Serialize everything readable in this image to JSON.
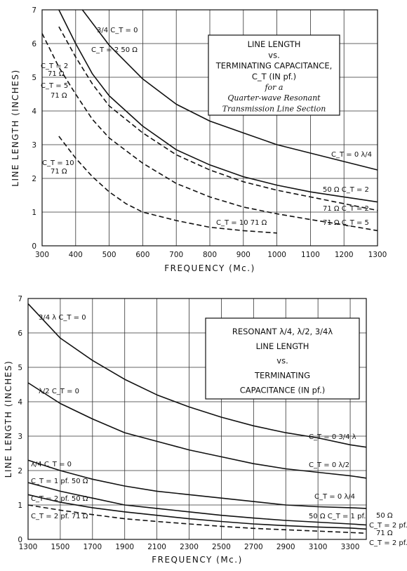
{
  "chart_data": [
    {
      "type": "line",
      "xlabel": "FREQUENCY (Mc.)",
      "ylabel": "LINE LENGTH (INCHES)",
      "xlim": [
        300,
        1300
      ],
      "ylim": [
        0,
        7
      ],
      "x_ticks": [
        "300",
        "400",
        "500",
        "600",
        "700",
        "800",
        "900",
        "1000",
        "1100",
        "1200",
        "1300"
      ],
      "y_ticks": [
        "0",
        "1",
        "2",
        "3",
        "4",
        "5",
        "6",
        "7"
      ],
      "grid": true,
      "title_lines": [
        "LINE LENGTH",
        "vs.",
        "TERMINATING CAPACITANCE,",
        "C_T (IN pf.)",
        "for a",
        "Quarter-wave Resonant",
        "Transmission Line Section"
      ],
      "series": [
        {
          "label": "C_T = 0  3/4",
          "dashed": false,
          "points": [
            [
              420,
              7.0
            ],
            [
              500,
              5.95
            ],
            [
              600,
              4.95
            ],
            [
              700,
              4.2
            ],
            [
              800,
              3.7
            ],
            [
              900,
              3.35
            ],
            [
              1000,
              3.0
            ],
            [
              1100,
              2.75
            ],
            [
              1200,
              2.5
            ],
            [
              1300,
              2.25
            ]
          ]
        },
        {
          "label": "C_T = 2  50 Ω",
          "dashed": false,
          "points": [
            [
              350,
              7.0
            ],
            [
              400,
              6.0
            ],
            [
              450,
              5.1
            ],
            [
              500,
              4.45
            ],
            [
              600,
              3.55
            ],
            [
              700,
              2.85
            ],
            [
              800,
              2.4
            ],
            [
              900,
              2.05
            ],
            [
              1000,
              1.8
            ],
            [
              1100,
              1.6
            ],
            [
              1200,
              1.45
            ],
            [
              1300,
              1.3
            ]
          ]
        },
        {
          "label": "C_T = 2  71 Ω",
          "dashed": true,
          "points": [
            [
              350,
              6.5
            ],
            [
              400,
              5.6
            ],
            [
              450,
              4.8
            ],
            [
              500,
              4.15
            ],
            [
              600,
              3.35
            ],
            [
              700,
              2.7
            ],
            [
              800,
              2.25
            ],
            [
              900,
              1.9
            ],
            [
              1000,
              1.65
            ],
            [
              1100,
              1.45
            ],
            [
              1200,
              1.25
            ],
            [
              1300,
              1.05
            ]
          ]
        },
        {
          "label": "C_T = 5  71 Ω",
          "dashed": true,
          "points": [
            [
              300,
              6.3
            ],
            [
              350,
              5.3
            ],
            [
              400,
              4.5
            ],
            [
              450,
              3.75
            ],
            [
              500,
              3.2
            ],
            [
              600,
              2.45
            ],
            [
              700,
              1.85
            ],
            [
              800,
              1.45
            ],
            [
              900,
              1.15
            ],
            [
              1000,
              0.95
            ],
            [
              1100,
              0.78
            ],
            [
              1200,
              0.62
            ],
            [
              1300,
              0.45
            ]
          ]
        },
        {
          "label": "C_T = 10  71 Ω",
          "dashed": true,
          "points": [
            [
              350,
              3.25
            ],
            [
              400,
              2.6
            ],
            [
              450,
              2.05
            ],
            [
              500,
              1.6
            ],
            [
              550,
              1.25
            ],
            [
              600,
              1.0
            ],
            [
              700,
              0.75
            ],
            [
              800,
              0.55
            ],
            [
              900,
              0.45
            ],
            [
              1000,
              0.38
            ]
          ]
        }
      ],
      "annotations": [
        "3/4  C_T = 0",
        "C_T = 2   50 Ω",
        "C_T = 2",
        "71 Ω",
        "C_T = 5",
        "71 Ω",
        "C_T = 10",
        "71 Ω",
        "C_T = 0  λ/4",
        "50 Ω   C_T = 2",
        "71 Ω   C_T = 2",
        "71 Ω   C_T = 5",
        "C_T = 10  71 Ω"
      ]
    },
    {
      "type": "line",
      "xlabel": "FREQUENCY (Mc.)",
      "ylabel": "LINE LENGTH (INCHES)",
      "xlim": [
        1300,
        3400
      ],
      "ylim": [
        0,
        7
      ],
      "x_ticks": [
        "1300",
        "1500",
        "1700",
        "1900",
        "2100",
        "2300",
        "2500",
        "2700",
        "2900",
        "3100",
        "3300"
      ],
      "y_ticks": [
        "0",
        "1",
        "2",
        "3",
        "4",
        "5",
        "6",
        "7"
      ],
      "grid": true,
      "title_lines": [
        "RESONANT λ/4, λ/2, 3/4λ",
        "LINE LENGTH",
        "vs.",
        "TERMINATING",
        "CAPACITANCE (IN pf.)"
      ],
      "series": [
        {
          "label": "C_T = 0  3/4 λ",
          "dashed": false,
          "points": [
            [
              1300,
              6.85
            ],
            [
              1500,
              5.85
            ],
            [
              1700,
              5.2
            ],
            [
              1900,
              4.65
            ],
            [
              2100,
              4.2
            ],
            [
              2300,
              3.85
            ],
            [
              2500,
              3.55
            ],
            [
              2700,
              3.3
            ],
            [
              2900,
              3.1
            ],
            [
              3100,
              2.95
            ],
            [
              3300,
              2.75
            ],
            [
              3400,
              2.68
            ]
          ]
        },
        {
          "label": "C_T = 0  λ/2",
          "dashed": false,
          "points": [
            [
              1300,
              4.55
            ],
            [
              1500,
              3.95
            ],
            [
              1700,
              3.5
            ],
            [
              1900,
              3.1
            ],
            [
              2100,
              2.85
            ],
            [
              2300,
              2.6
            ],
            [
              2500,
              2.4
            ],
            [
              2700,
              2.2
            ],
            [
              2900,
              2.05
            ],
            [
              3100,
              1.95
            ],
            [
              3300,
              1.85
            ],
            [
              3400,
              1.78
            ]
          ]
        },
        {
          "label": "C_T = 0  λ/4",
          "dashed": false,
          "points": [
            [
              1300,
              2.3
            ],
            [
              1500,
              2.0
            ],
            [
              1700,
              1.75
            ],
            [
              1900,
              1.55
            ],
            [
              2100,
              1.4
            ],
            [
              2300,
              1.3
            ],
            [
              2500,
              1.2
            ],
            [
              2700,
              1.1
            ],
            [
              2900,
              1.0
            ],
            [
              3100,
              0.95
            ],
            [
              3300,
              0.92
            ],
            [
              3400,
              0.9
            ]
          ]
        },
        {
          "label": "C_T = 1 pf.  50 Ω",
          "dashed": false,
          "points": [
            [
              1300,
              1.65
            ],
            [
              1500,
              1.4
            ],
            [
              1700,
              1.2
            ],
            [
              1900,
              1.0
            ],
            [
              2100,
              0.9
            ],
            [
              2300,
              0.8
            ],
            [
              2500,
              0.7
            ],
            [
              2700,
              0.62
            ],
            [
              2900,
              0.55
            ],
            [
              3100,
              0.5
            ],
            [
              3300,
              0.45
            ],
            [
              3400,
              0.42
            ]
          ]
        },
        {
          "label": "C_T = 2 pf.  50 Ω",
          "dashed": false,
          "points": [
            [
              1300,
              1.3
            ],
            [
              1500,
              1.08
            ],
            [
              1700,
              0.92
            ],
            [
              1900,
              0.8
            ],
            [
              2100,
              0.7
            ],
            [
              2300,
              0.6
            ],
            [
              2500,
              0.52
            ],
            [
              2700,
              0.45
            ],
            [
              2900,
              0.4
            ],
            [
              3100,
              0.36
            ],
            [
              3300,
              0.33
            ],
            [
              3400,
              0.3
            ]
          ]
        },
        {
          "label": "C_T = 2 pf.  71 Ω",
          "dashed": true,
          "points": [
            [
              1300,
              1.0
            ],
            [
              1500,
              0.85
            ],
            [
              1700,
              0.72
            ],
            [
              1900,
              0.6
            ],
            [
              2100,
              0.52
            ],
            [
              2300,
              0.45
            ],
            [
              2500,
              0.38
            ],
            [
              2700,
              0.32
            ],
            [
              2900,
              0.28
            ],
            [
              3100,
              0.24
            ],
            [
              3300,
              0.2
            ],
            [
              3400,
              0.18
            ]
          ]
        }
      ],
      "annotations": [
        "3/4 λ  C_T = 0",
        "λ/2   C_T = 0",
        "C_T = 0  3/4 λ",
        "C_T = 0  λ/2",
        "λ/4  C_T = 0",
        "C_T = 0  λ/4",
        "C_T = 1 pf.  50 Ω",
        "50 Ω  C_T = 1 pf.",
        "C_T = 2 pf.  50 Ω",
        "50 Ω",
        "C_T = 2 pf.",
        "C_T = 2 pf.  71 Ω",
        "71 Ω",
        "C_T = 2 pf."
      ]
    }
  ]
}
